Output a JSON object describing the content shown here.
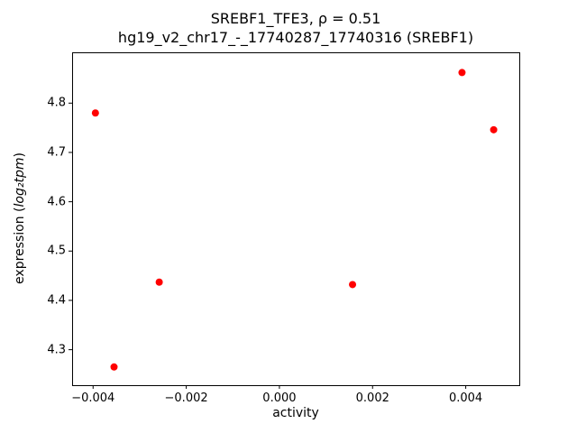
{
  "chart_data": {
    "type": "scatter",
    "title": "SREBF1_TFE3, ρ = 0.51",
    "subtitle": "hg19_v2_chr17_-_17740287_17740316 (SREBF1)",
    "correlation_rho": 0.51,
    "xlabel": "activity",
    "ylabel_prefix": "expression (",
    "ylabel_math": "log₂tpm",
    "ylabel_suffix": ")",
    "marker_color": "#ff0000",
    "grid": false,
    "legend": "none",
    "xlim": [
      -0.00445,
      0.00515
    ],
    "ylim": [
      4.228,
      4.903
    ],
    "xticks": {
      "values": [
        -0.004,
        -0.002,
        0.0,
        0.002,
        0.004
      ],
      "labels": [
        "−0.004",
        "−0.002",
        "0.000",
        "0.002",
        "0.004"
      ]
    },
    "yticks": {
      "values": [
        4.3,
        4.4,
        4.5,
        4.6,
        4.7,
        4.8
      ],
      "labels": [
        "4.3",
        "4.4",
        "4.5",
        "4.6",
        "4.7",
        "4.8"
      ]
    },
    "points": [
      {
        "x": -0.00395,
        "y": 4.78
      },
      {
        "x": -0.00355,
        "y": 4.265
      },
      {
        "x": -0.00258,
        "y": 4.437
      },
      {
        "x": 0.00157,
        "y": 4.432
      },
      {
        "x": 0.00392,
        "y": 4.862
      },
      {
        "x": 0.0046,
        "y": 4.746
      }
    ]
  }
}
